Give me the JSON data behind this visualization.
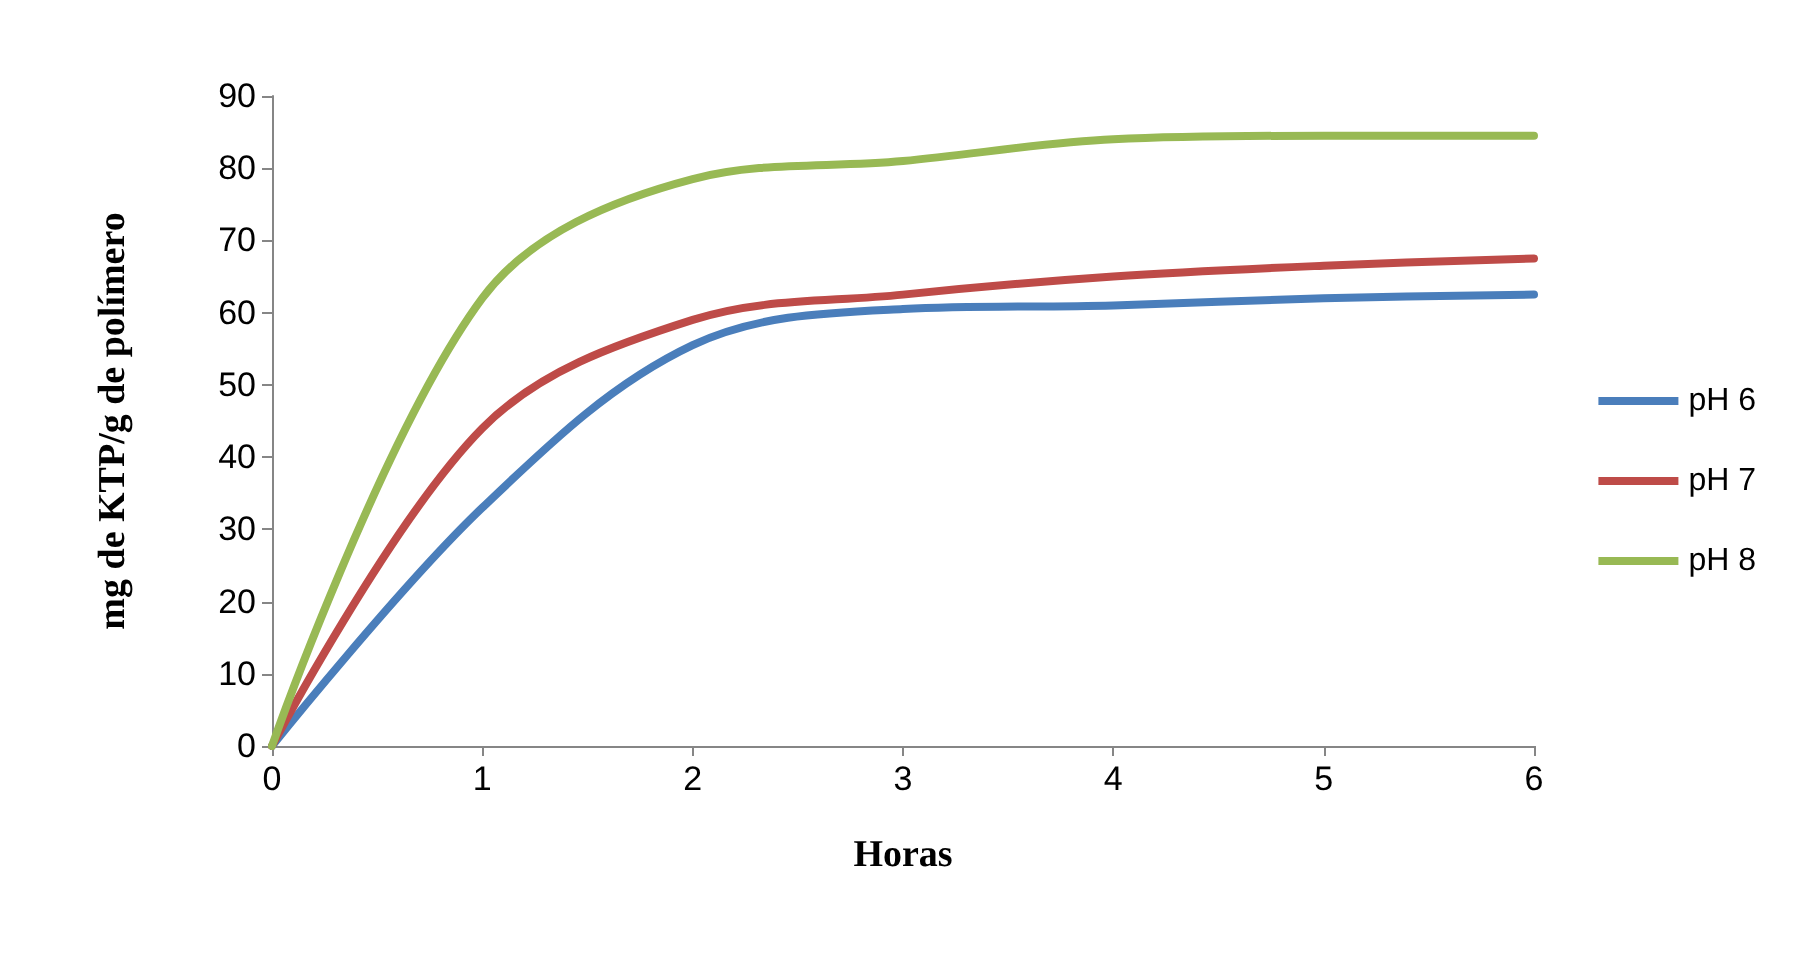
{
  "chart_data": {
    "type": "line",
    "xlabel": "Horas",
    "ylabel": "mg de KTP/g de polímero",
    "x": [
      0,
      1,
      2,
      3,
      4,
      5,
      6
    ],
    "series": [
      {
        "name": "pH 6",
        "color": "#4a7ebb",
        "values": [
          0,
          33,
          55.5,
          60.5,
          61,
          62,
          62.5
        ]
      },
      {
        "name": "pH 7",
        "color": "#be4b48",
        "values": [
          0,
          44,
          59,
          62.5,
          65,
          66.5,
          67.5
        ]
      },
      {
        "name": "pH 8",
        "color": "#98b954",
        "values": [
          0,
          62,
          78.5,
          81,
          84,
          84.5,
          84.5
        ]
      }
    ],
    "xlim": [
      0,
      6
    ],
    "xticks": [
      0,
      1,
      2,
      3,
      4,
      5,
      6
    ],
    "ylim": [
      0,
      90
    ],
    "yticks": [
      0,
      10,
      20,
      30,
      40,
      50,
      60,
      70,
      80,
      90
    ],
    "grid": false,
    "legend": "right",
    "marker": "none",
    "line_style": "solid"
  }
}
